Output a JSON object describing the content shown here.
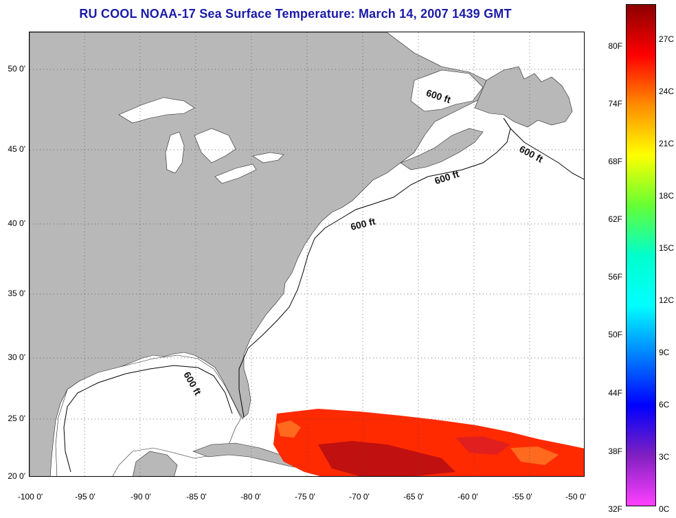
{
  "title": "RU COOL  NOAA-17  Sea Surface Temperature:  March 14, 2007 1439 GMT",
  "map": {
    "land_color": "#b8b8b8",
    "water_color": "#ffffff",
    "sst_colors": [
      "#ff2a00",
      "#e21f1f",
      "#ff6a1f",
      "#c01010"
    ],
    "lat_labels": [
      "50 0'",
      "45 0'",
      "40 0'",
      "35 0'",
      "30 0'",
      "25 0'",
      "20 0'"
    ],
    "lon_labels": [
      "-100 0'",
      "-95 0'",
      "-90 0'",
      "-85 0'",
      "-80 0'",
      "-75 0'",
      "-70 0'",
      "-65 0'",
      "-60 0'",
      "-55 0'",
      "-50 0'"
    ],
    "contour_labels": [
      "600 ft",
      "600 ft",
      "600 ft",
      "600 ft",
      "600 ft"
    ]
  },
  "colorbar": {
    "f_labels": [
      "80F",
      "74F",
      "68F",
      "62F",
      "56F",
      "50F",
      "44F",
      "38F",
      "32F"
    ],
    "c_labels": [
      "27C",
      "24C",
      "21C",
      "18C",
      "15C",
      "12C",
      "9C",
      "6C",
      "3C",
      "0C"
    ],
    "gradient_colors": [
      "#8b0000",
      "#ff0000",
      "#ff8c00",
      "#ffff00",
      "#66ff33",
      "#00ffcc",
      "#00ffff",
      "#0080ff",
      "#0000ff",
      "#8020c0",
      "#ff40ff"
    ]
  }
}
